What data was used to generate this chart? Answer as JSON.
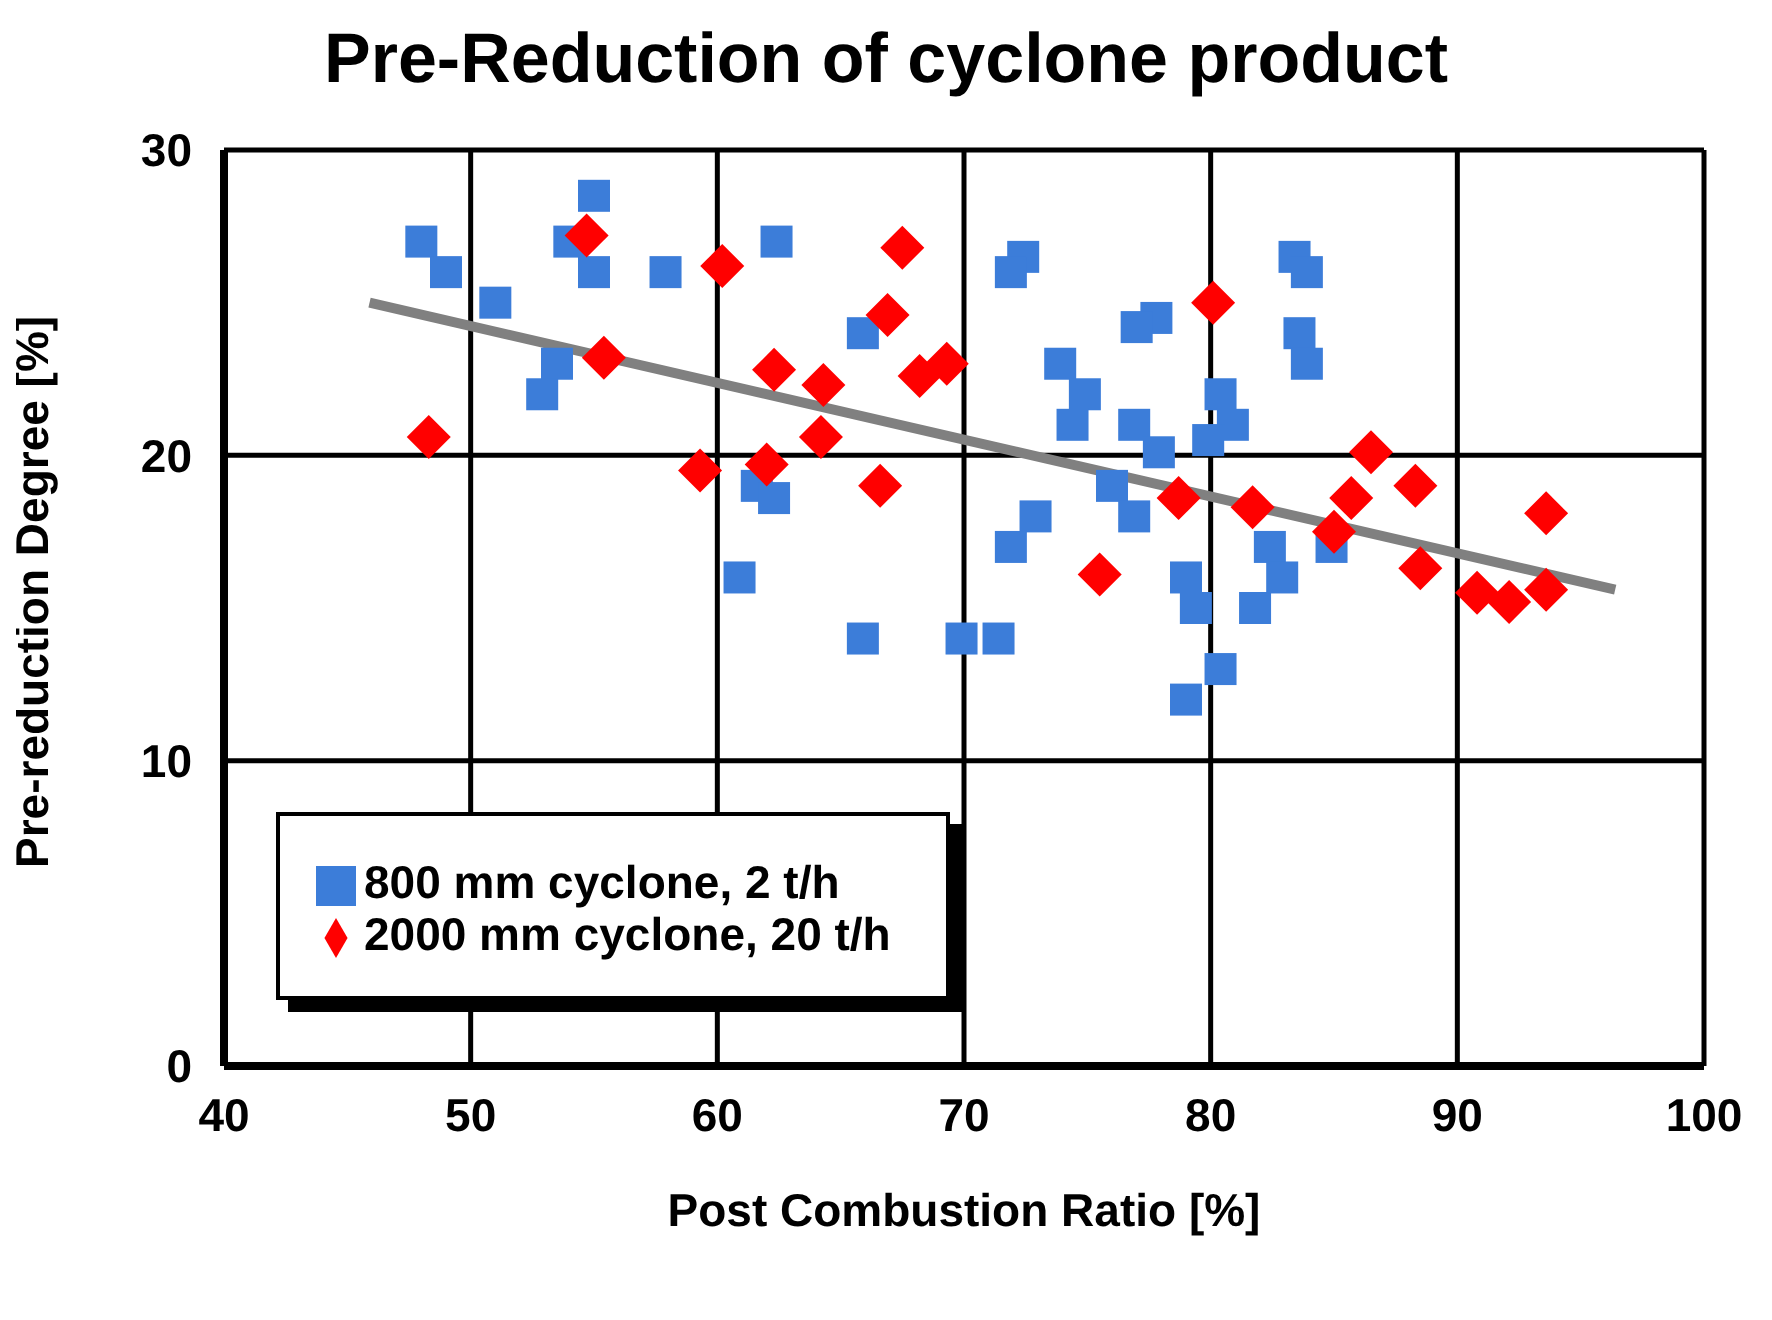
{
  "chart_data": {
    "type": "scatter",
    "title": "Pre-Reduction of cyclone product",
    "xlabel": "Post Combustion Ratio [%]",
    "ylabel": "Pre-reduction Degree [%]",
    "xlim": [
      40,
      100
    ],
    "xticks": [
      40,
      50,
      60,
      70,
      80,
      90,
      100
    ],
    "ylim": [
      0,
      30
    ],
    "yticks": [
      0,
      10,
      20,
      30
    ],
    "grid": true,
    "legend": "bottom left",
    "series": [
      {
        "name": "800 mm cyclone, 2 t/h",
        "color": "#3c7dd9",
        "marker": "square",
        "x": [
          48.0,
          49.0,
          51.0,
          53.5,
          52.9,
          55.0,
          54.0,
          55.0,
          57.9,
          62.4,
          65.9,
          61.6,
          62.3,
          60.9,
          65.9,
          72.4,
          71.9,
          83.4,
          83.9,
          77.8,
          77.0,
          83.6,
          83.9,
          73.9,
          74.9,
          74.4,
          76.9,
          77.9,
          80.4,
          80.9,
          79.9,
          76.0,
          76.9,
          72.9,
          71.9,
          69.9,
          71.4,
          79.0,
          79.4,
          81.8,
          82.4,
          82.9,
          84.9,
          80.4,
          79.0
        ],
        "values": [
          27.0,
          26.0,
          25.0,
          23.0,
          22.0,
          28.5,
          27.0,
          26.0,
          26.0,
          27.0,
          24.0,
          19.0,
          18.6,
          16.0,
          14.0,
          26.5,
          26.0,
          26.5,
          26.0,
          24.5,
          24.2,
          24.0,
          23.0,
          23.0,
          22.0,
          21.0,
          21.0,
          20.1,
          22.0,
          21.0,
          20.5,
          19.0,
          18.0,
          18.0,
          17.0,
          14.0,
          14.0,
          16.0,
          15.0,
          15.0,
          17.0,
          16.0,
          17.0,
          13.0,
          12.0
        ]
      },
      {
        "name": "2000 mm cyclone, 20 t/h",
        "color": "#ff0000",
        "marker": "diamond",
        "x": [
          48.3,
          54.7,
          55.4,
          60.2,
          67.5,
          66.9,
          62.3,
          64.3,
          64.2,
          59.3,
          62.0,
          66.6,
          68.2,
          69.3,
          80.1,
          86.5,
          88.3,
          85.7,
          85.0,
          78.7,
          81.7,
          75.5,
          88.5,
          90.8,
          92.1,
          93.6,
          93.6
        ],
        "values": [
          20.6,
          27.2,
          23.2,
          26.2,
          26.8,
          24.6,
          22.8,
          22.3,
          20.6,
          19.5,
          19.7,
          19.0,
          22.6,
          23.0,
          25.0,
          20.1,
          19.0,
          18.6,
          17.5,
          18.6,
          18.3,
          16.1,
          16.3,
          15.5,
          15.2,
          18.1,
          15.6
        ]
      },
      {
        "type": "line",
        "color": "#808080",
        "marker": "none",
        "x": [
          45.9,
          96.4
        ],
        "values": [
          25.0,
          15.6
        ]
      }
    ]
  }
}
